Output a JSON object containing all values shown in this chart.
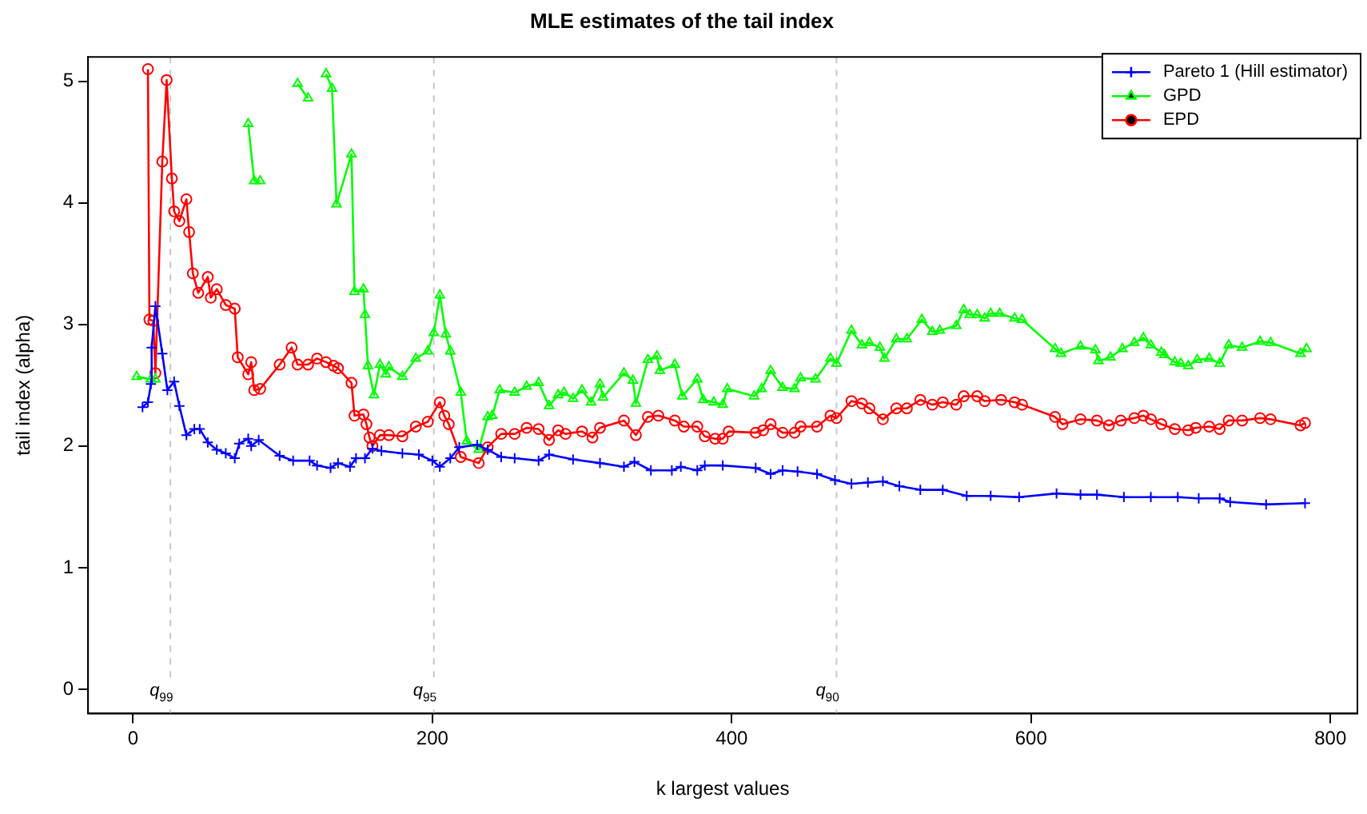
{
  "chart_data": {
    "type": "line",
    "title": "MLE estimates of the tail index",
    "xlabel": "k largest values",
    "ylabel": "tail index (alpha)",
    "xlim": [
      -30,
      818
    ],
    "xticks": [
      0,
      200,
      400,
      600,
      800
    ],
    "ylim": [
      -0.2,
      5.2
    ],
    "yticks": [
      0,
      1,
      2,
      3,
      4,
      5
    ],
    "grid": false,
    "legend": "top right",
    "ref_lines": [
      {
        "axis": "x",
        "value": 25,
        "label": "q$_{99}$",
        "color": "#c8c8c8",
        "line_style": "dashed"
      },
      {
        "axis": "x",
        "value": 201,
        "label": "q$_{95}$",
        "color": "#c8c8c8",
        "line_style": "dashed"
      },
      {
        "axis": "x",
        "value": 470,
        "label": "q$_{90}$",
        "color": "#c8c8c8",
        "line_style": "dashed"
      }
    ],
    "series": [
      {
        "name": "Pareto 1 (Hill estimator)",
        "color": "#0000ff",
        "marker": "cross",
        "x": [
          6.4,
          10,
          12,
          12.5,
          15,
          19.6,
          23,
          27.5,
          31,
          35.7,
          41,
          44.6,
          50,
          56,
          62,
          68,
          71,
          77,
          79,
          84,
          98,
          107,
          118,
          123,
          132,
          137,
          145,
          149,
          155,
          160,
          166,
          180,
          191,
          200,
          205,
          212,
          218,
          230,
          237,
          246,
          255,
          271,
          278,
          294,
          312,
          328,
          335,
          346,
          360,
          366,
          377,
          382,
          394,
          416,
          426,
          434,
          444,
          457,
          469,
          480,
          491,
          501,
          512,
          526,
          541,
          557,
          573,
          592,
          617,
          633,
          644,
          662,
          680,
          698,
          712,
          726,
          733,
          757,
          783
        ],
        "values": [
          2.32,
          2.36,
          2.51,
          2.81,
          3.15,
          2.76,
          2.46,
          2.53,
          2.33,
          2.09,
          2.14,
          2.14,
          2.03,
          1.97,
          1.94,
          1.9,
          2.02,
          2.06,
          2.0,
          2.05,
          1.92,
          1.88,
          1.88,
          1.84,
          1.82,
          1.86,
          1.83,
          1.9,
          1.9,
          1.98,
          1.96,
          1.94,
          1.93,
          1.88,
          1.83,
          1.9,
          1.99,
          2.01,
          1.97,
          1.91,
          1.9,
          1.88,
          1.93,
          1.89,
          1.86,
          1.83,
          1.87,
          1.8,
          1.8,
          1.83,
          1.8,
          1.84,
          1.84,
          1.82,
          1.77,
          1.8,
          1.79,
          1.77,
          1.72,
          1.69,
          1.7,
          1.71,
          1.67,
          1.64,
          1.64,
          1.59,
          1.59,
          1.58,
          1.61,
          1.6,
          1.6,
          1.58,
          1.58,
          1.58,
          1.57,
          1.57,
          1.54,
          1.52,
          1.53
        ]
      },
      {
        "name": "GPD",
        "color": "#00ff00",
        "marker": "triangle",
        "x": [
          2.5,
          12,
          15,
          25,
          77,
          81,
          85,
          98,
          110,
          117,
          123,
          129,
          133,
          136,
          146,
          148,
          154,
          155,
          157,
          161,
          165,
          169,
          171,
          180,
          189,
          197,
          201,
          205,
          209,
          212,
          219,
          223,
          231,
          237,
          240,
          245,
          255,
          263,
          271,
          278,
          284,
          288,
          294,
          300,
          306,
          312,
          314,
          328,
          334,
          336,
          344,
          350,
          352,
          362,
          367,
          377,
          381,
          388,
          394,
          397,
          415,
          420,
          426,
          434,
          442,
          446,
          456,
          466,
          470,
          480,
          487,
          492,
          499,
          502,
          510,
          517,
          527,
          534,
          539,
          550,
          555,
          559,
          564,
          569,
          573,
          579,
          589,
          594,
          616,
          620,
          633,
          643,
          645,
          653,
          661,
          669,
          675,
          680,
          687,
          689,
          696,
          700,
          705,
          711,
          719,
          726,
          732,
          741,
          753,
          760,
          780,
          784
        ],
        "values": [
          2.57,
          2.55,
          2.55,
          null,
          4.65,
          4.18,
          4.18,
          null,
          4.98,
          4.86,
          null,
          5.06,
          4.94,
          3.99,
          4.4,
          3.27,
          3.29,
          3.08,
          2.66,
          2.42,
          2.67,
          2.59,
          2.65,
          2.57,
          2.72,
          2.78,
          2.93,
          3.24,
          2.92,
          2.78,
          2.44,
          2.04,
          1.97,
          2.24,
          2.25,
          2.46,
          2.44,
          2.49,
          2.52,
          2.33,
          2.42,
          2.44,
          2.39,
          2.46,
          2.36,
          2.51,
          2.4,
          2.6,
          2.54,
          2.35,
          2.71,
          2.74,
          2.62,
          2.67,
          2.41,
          2.55,
          2.38,
          2.36,
          2.34,
          2.47,
          2.41,
          2.47,
          2.62,
          2.48,
          2.47,
          2.56,
          2.55,
          2.72,
          2.68,
          2.95,
          2.83,
          2.85,
          2.81,
          2.72,
          2.88,
          2.88,
          3.04,
          2.94,
          2.95,
          2.99,
          3.12,
          3.08,
          3.08,
          3.05,
          3.09,
          3.09,
          3.05,
          3.04,
          2.8,
          2.76,
          2.82,
          2.79,
          2.7,
          2.73,
          2.8,
          2.85,
          2.89,
          2.83,
          2.77,
          2.75,
          2.69,
          2.68,
          2.66,
          2.71,
          2.72,
          2.68,
          2.83,
          2.81,
          2.86,
          2.85,
          2.76,
          2.8
        ]
      },
      {
        "name": "EPD",
        "color": "#ff0000",
        "marker": "circle",
        "x": [
          10,
          11,
          13.6,
          15,
          19.6,
          22.5,
          26,
          27.5,
          31,
          35.7,
          37.5,
          40,
          43.6,
          50,
          52,
          56,
          62,
          68,
          70,
          77,
          79,
          81,
          85,
          98,
          106,
          110,
          117,
          123,
          129,
          134,
          137,
          146,
          148,
          154,
          156,
          158,
          160,
          165,
          171,
          180,
          189,
          197,
          205,
          208,
          211,
          219,
          231,
          237,
          246,
          255,
          263,
          271,
          278,
          284,
          289,
          300,
          307,
          312,
          328,
          336,
          344,
          351,
          362,
          368,
          377,
          382,
          389,
          394,
          398,
          416,
          421,
          426,
          434,
          442,
          446,
          457,
          466,
          470,
          480,
          487,
          492,
          501,
          510,
          517,
          526,
          534,
          541,
          550,
          555,
          564,
          569,
          580,
          589,
          594,
          616,
          621,
          633,
          644,
          652,
          660,
          669,
          675,
          680,
          687,
          696,
          705,
          710,
          719,
          726,
          732,
          741,
          753,
          760,
          780,
          783
        ],
        "values": [
          5.1,
          3.04,
          3.03,
          2.6,
          4.34,
          5.01,
          4.2,
          3.93,
          3.85,
          4.03,
          3.76,
          3.42,
          3.26,
          3.39,
          3.22,
          3.29,
          3.16,
          3.13,
          2.73,
          2.59,
          2.69,
          2.46,
          2.47,
          2.67,
          2.81,
          2.67,
          2.67,
          2.72,
          2.69,
          2.66,
          2.64,
          2.52,
          2.25,
          2.26,
          2.18,
          2.07,
          2.0,
          2.09,
          2.09,
          2.08,
          2.16,
          2.2,
          2.36,
          2.25,
          2.18,
          1.91,
          1.86,
          1.99,
          2.1,
          2.1,
          2.15,
          2.14,
          2.05,
          2.13,
          2.1,
          2.12,
          2.07,
          2.15,
          2.21,
          2.09,
          2.24,
          2.25,
          2.21,
          2.16,
          2.16,
          2.08,
          2.06,
          2.06,
          2.12,
          2.11,
          2.13,
          2.18,
          2.11,
          2.11,
          2.16,
          2.16,
          2.25,
          2.23,
          2.37,
          2.35,
          2.31,
          2.22,
          2.31,
          2.31,
          2.38,
          2.34,
          2.36,
          2.34,
          2.41,
          2.41,
          2.37,
          2.38,
          2.36,
          2.34,
          2.24,
          2.18,
          2.22,
          2.21,
          2.17,
          2.21,
          2.23,
          2.25,
          2.22,
          2.18,
          2.14,
          2.13,
          2.15,
          2.16,
          2.14,
          2.21,
          2.21,
          2.23,
          2.22,
          2.17,
          2.19
        ]
      }
    ]
  }
}
